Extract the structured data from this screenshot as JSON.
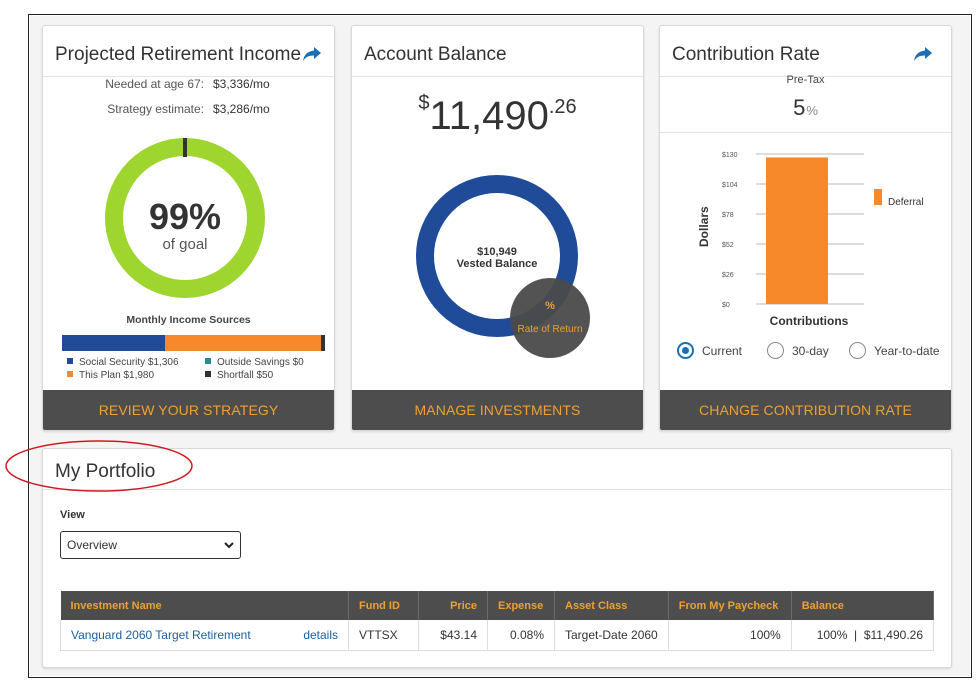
{
  "colors": {
    "accent_orange": "#f0a030",
    "navy": "#1f4b99",
    "green": "#9ed52f",
    "bar_orange": "#f7892a",
    "footer": "#4d4d4d",
    "teal": "#2a8c8c",
    "annotation_red": "#d0191f"
  },
  "projected": {
    "title": "Projected Retirement Income",
    "share_icon": "share-arrow-icon",
    "needed_label": "Needed at age 67:",
    "needed_value": "$3,336/mo",
    "estimate_label": "Strategy estimate:",
    "estimate_value": "$3,286/mo",
    "goal_percent": "99%",
    "goal_sub": "of goal",
    "goal_fraction": 0.99,
    "sources_title": "Monthly Income Sources",
    "sources": [
      {
        "label": "Social Security $1,306",
        "amount": 1306,
        "color": "#1f4b99"
      },
      {
        "label": "This Plan $1,980",
        "amount": 1980,
        "color": "#f7892a"
      },
      {
        "label": "Outside Savings $0",
        "amount": 0,
        "color": "#2a8c8c"
      },
      {
        "label": "Shortfall $50",
        "amount": 50,
        "color": "#333333"
      }
    ],
    "button": "REVIEW YOUR STRATEGY"
  },
  "balance": {
    "title": "Account Balance",
    "currency": "$",
    "whole": "11,490",
    "cents": ".26",
    "vested_value": "$10,949",
    "vested_label": "Vested Balance",
    "ror_value": "%",
    "ror_label": "Rate of Return",
    "button": "MANAGE INVESTMENTS"
  },
  "contribution": {
    "title": "Contribution Rate",
    "share_icon": "share-arrow-icon",
    "pretax_label": "Pre-Tax",
    "pretax_value": "5",
    "pretax_unit": "%",
    "radios": [
      {
        "label": "Current",
        "selected": true
      },
      {
        "label": "30-day",
        "selected": false
      },
      {
        "label": "Year-to-date",
        "selected": false
      }
    ],
    "button": "CHANGE CONTRIBUTION RATE"
  },
  "chart_data": {
    "type": "bar",
    "categories": [
      ""
    ],
    "series": [
      {
        "name": "Deferral",
        "values": [
          127
        ]
      }
    ],
    "ticks": [
      "$0",
      "$26",
      "$52",
      "$78",
      "$104",
      "$130"
    ],
    "ylim": [
      0,
      130
    ],
    "xlabel": "Contributions",
    "ylabel": "Dollars",
    "legend": "right",
    "grid": true
  },
  "portfolio": {
    "title": "My Portfolio",
    "view_label": "View",
    "view_selected": "Overview",
    "columns": [
      "Investment Name",
      "Fund ID",
      "Price",
      "Expense",
      "Asset Class",
      "From My Paycheck",
      "Balance"
    ],
    "rows": [
      {
        "name": "Vanguard 2060 Target Retirement",
        "details": "details",
        "fund_id": "VTTSX",
        "price": "$43.14",
        "expense": "0.08%",
        "asset_class": "Target-Date 2060",
        "paycheck": "100%",
        "balance": "100%  |  $11,490.26"
      }
    ]
  }
}
